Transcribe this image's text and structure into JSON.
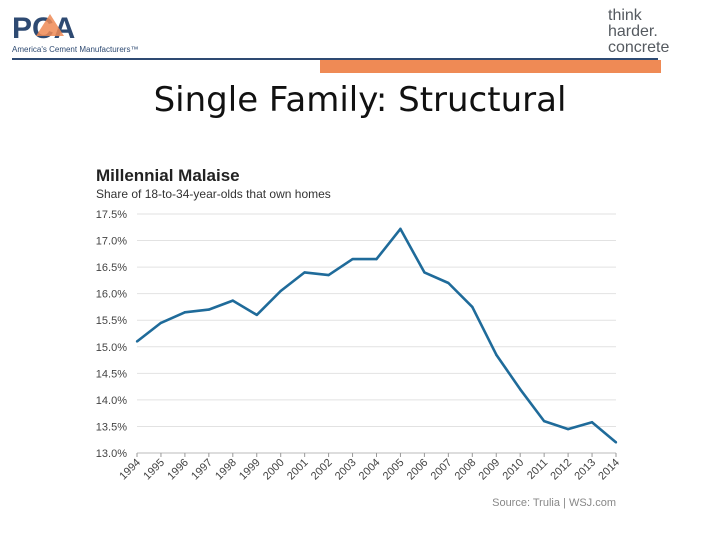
{
  "slide": {
    "title": "Single Family: Structural"
  },
  "logos": {
    "left_main": "PCA",
    "left_tagline": "America's Cement Manufacturers™",
    "right_line1": "think",
    "right_line2": "harder.",
    "right_line3": "concrete"
  },
  "colors": {
    "series": "#1f6b9a",
    "brand_blue": "#2e4a72",
    "accent_orange": "#ef8a55"
  },
  "chart_data": {
    "type": "line",
    "title": "Millennial Malaise",
    "subtitle": "Share of 18-to-34-year-olds that own homes",
    "source": "Source: Trulia | WSJ.com",
    "xlabel": "",
    "ylabel": "",
    "x": [
      "1994",
      "1995",
      "1996",
      "1997",
      "1998",
      "1999",
      "2000",
      "2001",
      "2002",
      "2003",
      "2004",
      "2005",
      "2006",
      "2007",
      "2008",
      "2009",
      "2010",
      "2011",
      "2012",
      "2013",
      "2014"
    ],
    "y_ticks": [
      "13.0%",
      "13.5%",
      "14.0%",
      "14.5%",
      "15.0%",
      "15.5%",
      "16.0%",
      "16.5%",
      "17.0%",
      "17.5%"
    ],
    "ylim": [
      13.0,
      17.5
    ],
    "grid": true,
    "series": [
      {
        "values": [
          15.1,
          15.45,
          15.65,
          15.7,
          15.87,
          15.6,
          16.05,
          16.4,
          16.35,
          16.65,
          16.65,
          17.22,
          16.4,
          16.2,
          15.75,
          14.85,
          14.2,
          13.6,
          13.45,
          13.58,
          13.2
        ]
      }
    ]
  }
}
